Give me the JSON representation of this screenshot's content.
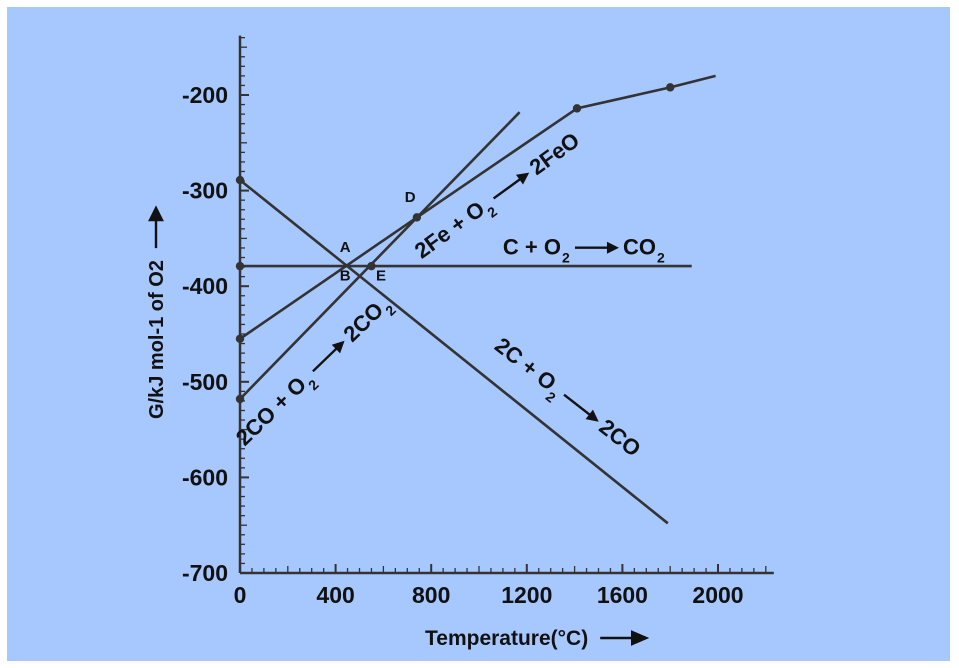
{
  "colors": {
    "background": "#a7c7ff",
    "ink": "#333333",
    "page": "#ffffff"
  },
  "chart_data": {
    "type": "line",
    "title": "",
    "xlabel": "Temperature(°C)",
    "ylabel": "G/kJ mol-1 of O2",
    "xlim": [
      0,
      2200
    ],
    "ylim": [
      -700,
      -140
    ],
    "x_ticks": [
      0,
      400,
      800,
      1200,
      1600,
      2000
    ],
    "y_ticks": [
      -200,
      -300,
      -400,
      -500,
      -600,
      -700
    ],
    "x_tick_labels": [
      "0",
      "400",
      "800",
      "1200",
      "1600",
      "2000"
    ],
    "y_tick_labels": [
      "-200",
      "-300",
      "-400",
      "-500",
      "-600",
      "-700"
    ],
    "grid": false,
    "series": [
      {
        "id": "c-co",
        "points": [
          [
            0,
            -289
          ],
          [
            1790,
            -648
          ]
        ],
        "markers": [
          [
            0,
            -289
          ]
        ]
      },
      {
        "id": "c-co2",
        "points": [
          [
            0,
            -379
          ],
          [
            1890,
            -379
          ]
        ],
        "markers": [
          [
            0,
            -379
          ],
          [
            550,
            -379
          ]
        ]
      },
      {
        "id": "fe-feo",
        "points": [
          [
            0,
            -455
          ],
          [
            740,
            -328
          ],
          [
            1410,
            -214
          ],
          [
            1800,
            -192
          ],
          [
            1990,
            -180
          ]
        ],
        "markers": [
          [
            0,
            -455
          ],
          [
            740,
            -328
          ],
          [
            1410,
            -214
          ],
          [
            1800,
            -192
          ]
        ]
      },
      {
        "id": "co-co2",
        "points": [
          [
            0,
            -518
          ],
          [
            1170,
            -218
          ]
        ],
        "markers": [
          [
            0,
            -518
          ]
        ]
      }
    ],
    "point_labels": [
      {
        "text": "A",
        "x": 440,
        "y": -364
      },
      {
        "text": "B",
        "x": 440,
        "y": -394
      },
      {
        "text": "D",
        "x": 712,
        "y": -312
      },
      {
        "text": "E",
        "x": 590,
        "y": -394
      }
    ],
    "reaction_labels": [
      {
        "id": "fe-feo-label",
        "reactant": "2Fe + O",
        "reactant_sub": "2",
        "product": "2FeO",
        "product_sub": "",
        "x": 760,
        "y": -372,
        "angle": -36
      },
      {
        "id": "c-co2-label",
        "reactant": "C + O",
        "reactant_sub": "2",
        "product": "CO",
        "product_sub": "2",
        "x": 1100,
        "y": -367,
        "angle": 0
      },
      {
        "id": "co-co2-label",
        "reactant": "2CO + O",
        "reactant_sub": "2",
        "product": "2CO",
        "product_sub": "2",
        "x": 20,
        "y": -568,
        "angle": -44
      },
      {
        "id": "c-co-label",
        "reactant": "2C + O",
        "reactant_sub": "2",
        "product": "2CO",
        "product_sub": "",
        "x": 1060,
        "y": -465,
        "angle": 38
      }
    ]
  }
}
